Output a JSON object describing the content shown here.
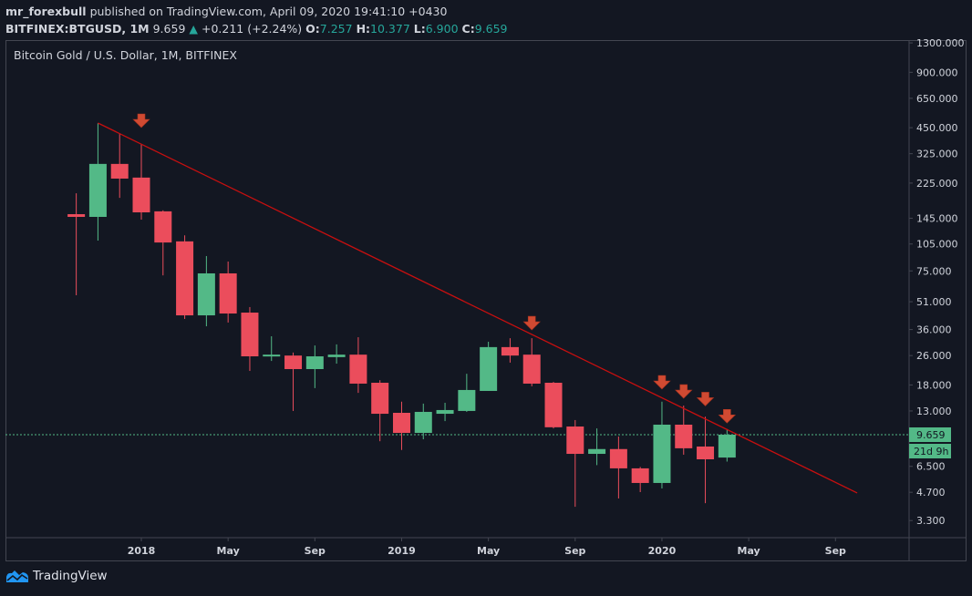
{
  "header": {
    "author": "mr_forexbull",
    "published_text": "published on TradingView.com, April 09, 2020 19:41:10 +0430",
    "symbol": "BITFINEX:BTGUSD, 1M",
    "last": "9.659",
    "change": "+0.211 (+2.24%)",
    "o_label": "O:",
    "o": "7.257",
    "h_label": "H:",
    "h": "10.377",
    "l_label": "L:",
    "l": "6.900",
    "c_label": "C:",
    "c": "9.659"
  },
  "legend_title": "Bitcoin Gold / U.S. Dollar, 1M, BITFINEX",
  "footer": {
    "brand": "TradingView"
  },
  "colors": {
    "up": "#53b987",
    "down": "#eb4d5c",
    "trendline": "#c80f0f",
    "arrow": "#d04a32",
    "bg": "#131722",
    "axis": "#434651"
  },
  "chart_data": {
    "type": "candlestick",
    "title": "Bitcoin Gold / U.S. Dollar, 1M, BITFINEX",
    "yscale": "log",
    "ylim": [
      2.8,
      1450
    ],
    "y_ticks": [
      "1300.000",
      "900.000",
      "650.000",
      "450.000",
      "325.000",
      "225.000",
      "145.000",
      "105.000",
      "75.000",
      "51.000",
      "36.000",
      "26.000",
      "18.000",
      "13.000",
      "6.500",
      "4.700",
      "3.300"
    ],
    "x_ticks": [
      {
        "date": "2018-01",
        "label": "2018"
      },
      {
        "date": "2018-05",
        "label": "May"
      },
      {
        "date": "2018-09",
        "label": "Sep"
      },
      {
        "date": "2019-01",
        "label": "2019"
      },
      {
        "date": "2019-05",
        "label": "May"
      },
      {
        "date": "2019-09",
        "label": "Sep"
      },
      {
        "date": "2020-01",
        "label": "2020"
      },
      {
        "date": "2020-05",
        "label": "May"
      },
      {
        "date": "2020-09",
        "label": "Sep"
      }
    ],
    "candles": [
      {
        "date": "2017-10",
        "o": 152.5,
        "h": 198,
        "l": 55.3,
        "c": 147.4
      },
      {
        "date": "2017-11",
        "o": 147.4,
        "h": 477,
        "l": 109.6,
        "c": 286
      },
      {
        "date": "2017-12",
        "o": 286,
        "h": 416,
        "l": 187,
        "c": 238
      },
      {
        "date": "2018-01",
        "o": 241,
        "h": 367,
        "l": 142.5,
        "c": 156
      },
      {
        "date": "2018-02",
        "o": 158,
        "h": 160,
        "l": 70.9,
        "c": 107
      },
      {
        "date": "2018-03",
        "o": 108.5,
        "h": 117,
        "l": 41.1,
        "c": 43.0
      },
      {
        "date": "2018-04",
        "o": 43.0,
        "h": 90.3,
        "l": 37.5,
        "c": 72.7
      },
      {
        "date": "2018-05",
        "o": 72.7,
        "h": 84.3,
        "l": 39.3,
        "c": 44.0
      },
      {
        "date": "2018-06",
        "o": 44.5,
        "h": 47.7,
        "l": 21.45,
        "c": 25.75
      },
      {
        "date": "2018-07",
        "o": 25.75,
        "h": 33.1,
        "l": 24.3,
        "c": 26.3
      },
      {
        "date": "2018-08",
        "o": 26.0,
        "h": 27.0,
        "l": 13.0,
        "c": 21.95
      },
      {
        "date": "2018-09",
        "o": 21.95,
        "h": 29.5,
        "l": 17.3,
        "c": 25.75
      },
      {
        "date": "2018-10",
        "o": 25.5,
        "h": 29.9,
        "l": 23.5,
        "c": 26.3
      },
      {
        "date": "2018-11",
        "o": 26.3,
        "h": 32.7,
        "l": 16.3,
        "c": 18.3
      },
      {
        "date": "2018-12",
        "o": 18.5,
        "h": 19.1,
        "l": 8.9,
        "c": 12.55
      },
      {
        "date": "2019-01",
        "o": 12.7,
        "h": 14.6,
        "l": 7.98,
        "c": 9.88
      },
      {
        "date": "2019-02",
        "o": 9.88,
        "h": 14.25,
        "l": 9.12,
        "c": 12.85
      },
      {
        "date": "2019-03",
        "o": 12.55,
        "h": 14.4,
        "l": 11.45,
        "c": 13.15
      },
      {
        "date": "2019-04",
        "o": 13.0,
        "h": 20.7,
        "l": 12.85,
        "c": 16.9
      },
      {
        "date": "2019-05",
        "o": 16.7,
        "h": 30.9,
        "l": 16.7,
        "c": 28.9
      },
      {
        "date": "2019-06",
        "o": 28.9,
        "h": 32.3,
        "l": 23.8,
        "c": 26.0
      },
      {
        "date": "2019-07",
        "o": 26.3,
        "h": 32.3,
        "l": 17.7,
        "c": 18.3
      },
      {
        "date": "2019-08",
        "o": 18.5,
        "h": 18.7,
        "l": 10.45,
        "c": 10.6
      },
      {
        "date": "2019-09",
        "o": 10.7,
        "h": 11.6,
        "l": 3.92,
        "c": 7.6
      },
      {
        "date": "2019-10",
        "o": 7.6,
        "h": 10.45,
        "l": 6.6,
        "c": 8.07
      },
      {
        "date": "2019-11",
        "o": 8.07,
        "h": 9.44,
        "l": 4.35,
        "c": 6.34
      },
      {
        "date": "2019-12",
        "o": 6.34,
        "h": 6.45,
        "l": 4.71,
        "c": 5.28
      },
      {
        "date": "2020-01",
        "o": 5.28,
        "h": 14.6,
        "l": 4.93,
        "c": 10.95
      },
      {
        "date": "2020-02",
        "o": 10.95,
        "h": 13.9,
        "l": 7.52,
        "c": 8.15
      },
      {
        "date": "2020-03",
        "o": 8.33,
        "h": 12.1,
        "l": 4.1,
        "c": 7.1
      },
      {
        "date": "2020-04",
        "o": 7.257,
        "h": 10.377,
        "l": 6.9,
        "c": 9.659
      }
    ],
    "trendline": [
      {
        "date": "2017-11",
        "price": 477
      },
      {
        "date": "2020-10",
        "price": 4.66
      }
    ],
    "arrows": [
      {
        "date": "2018-01",
        "price": 488
      },
      {
        "date": "2019-07",
        "price": 38.8
      },
      {
        "date": "2020-01",
        "price": 18.5
      },
      {
        "date": "2020-02",
        "price": 16.5
      },
      {
        "date": "2020-03",
        "price": 15.0
      },
      {
        "date": "2020-04",
        "price": 12.1
      }
    ],
    "last_price": {
      "value": 9.659,
      "label": "9.659",
      "countdown": "21d 9h"
    }
  }
}
